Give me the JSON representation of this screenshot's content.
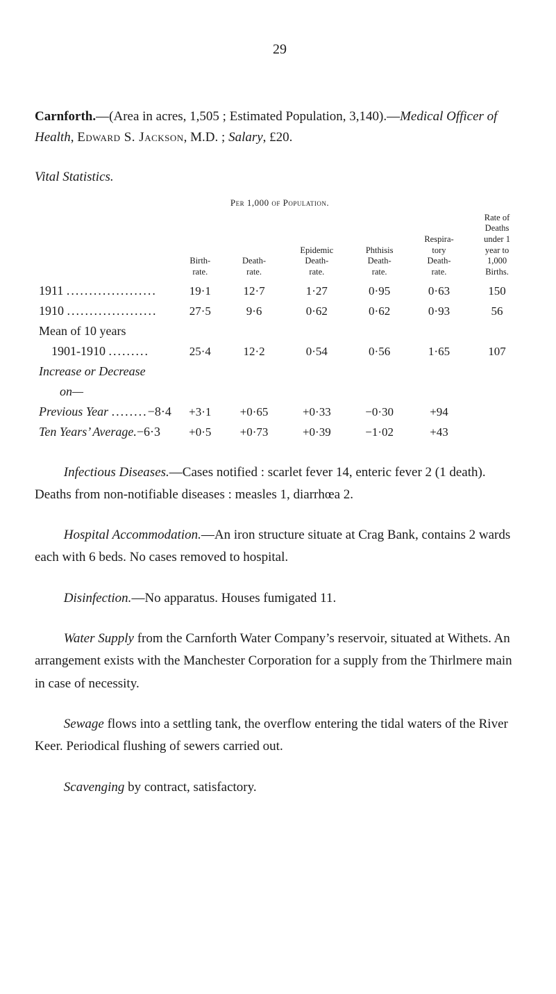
{
  "page_number": "29",
  "intro": {
    "place": "Carnforth.",
    "area_line": "—(Area in acres, 1,505 ; Estimated Population, 3,140).—",
    "officer_label_italic": "Medical Officer of Health",
    "officer_sep": ", ",
    "officer_name": "Edward S. Jackson",
    "officer_tail": ", M.D. ; ",
    "salary_label_italic": "Salary",
    "salary_value": ", £20."
  },
  "vital_label": "Vital Statistics.",
  "table": {
    "caption": "Per 1,000 of Population.",
    "headers": {
      "c1": "Birth-\nrate.",
      "c2": "Death-\nrate.",
      "c3": "Epidemic\nDeath-\nrate.",
      "c4": "Phthisis\nDeath-\nrate.",
      "c5": "Respira-\ntory\nDeath-\nrate.",
      "c6": "Rate of\nDeaths\nunder 1\nyear to\n1,000\nBirths."
    },
    "rows": [
      {
        "label": "1911",
        "dots": "....................",
        "c1": "19·1",
        "c2": "12·7",
        "c3": "1·27",
        "c4": "0·95",
        "c5": "0·63",
        "c6": "150"
      },
      {
        "label": "1910",
        "dots": "....................",
        "c1": "27·5",
        "c2": "9·6",
        "c3": "0·62",
        "c4": "0·62",
        "c5": "0·93",
        "c6": "56"
      }
    ],
    "mean_label": "Mean of 10 years",
    "mean_row": {
      "label": "1901-1910",
      "dots": ".........",
      "c1": "25·4",
      "c2": "12·2",
      "c3": "0·54",
      "c4": "0·56",
      "c5": "1·65",
      "c6": "107"
    },
    "incdec_label": "Increase or Decrease",
    "incdec_on": "on—",
    "prev_row": {
      "label_italic": "Previous Year",
      "dots": "........",
      "c0": "−8·4",
      "c1": "+3·1",
      "c2": "+0·65",
      "c3": "+0·33",
      "c4": "−0·30",
      "c5": "+94"
    },
    "ten_row": {
      "label_italic": "Ten Years’ Average.",
      "c0": "−6·3",
      "c1": "+0·5",
      "c2": "+0·73",
      "c3": "+0·39",
      "c4": "−1·02",
      "c5": "+43"
    }
  },
  "infectious": {
    "lead_italic": "Infectious Diseases.",
    "text": "—Cases notified : scarlet fever 14, enteric fever 2 (1 death). Deaths from non-notifiable diseases : measles 1, diarrhœa 2."
  },
  "hospital": {
    "lead_italic": "Hospital Accommodation.",
    "text": "—An iron structure situate at Crag Bank, contains 2 wards each with 6 beds. No cases removed to hospital."
  },
  "disinfection": {
    "lead_italic": "Disinfection.",
    "text": "—No apparatus. Houses fumigated 11."
  },
  "water": {
    "lead_italic": "Water Supply",
    "text": " from the Carnforth Water Company’s reservoir, situated at Withets. An arrangement exists with the Manchester Corporation for a supply from the Thirlmere main in case of necessity."
  },
  "sewage": {
    "lead_italic": "Sewage",
    "text": " flows into a settling tank, the overflow entering the tidal waters of the River Keer. Periodical flushing of sewers carried out."
  },
  "scavenging": {
    "lead_italic": "Scavenging",
    "text": " by contract, satisfactory."
  }
}
